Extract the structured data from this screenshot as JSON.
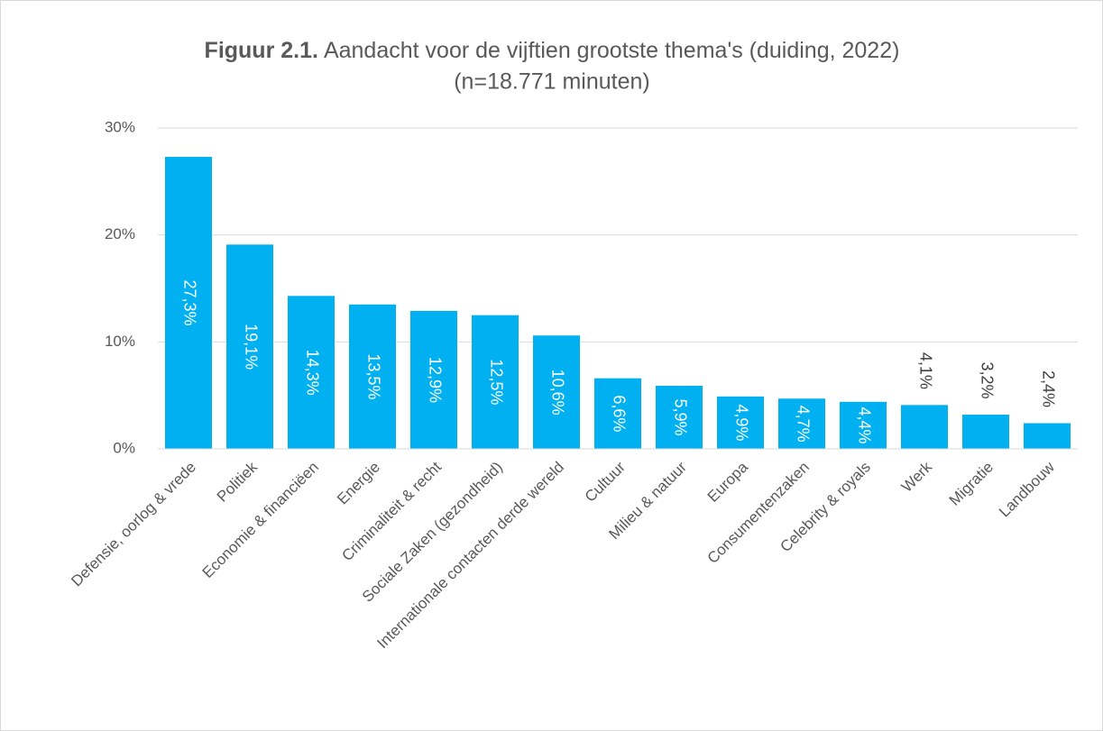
{
  "chart_data": {
    "type": "bar",
    "title_prefix": "Figuur 2.1.",
    "title": "Aandacht voor de vijftien grootste thema's (duiding, 2022)",
    "subtitle": "(n=18.771 minuten)",
    "categories": [
      "Defensie, oorlog & vrede",
      "Politiek",
      "Economie & financiëen",
      "Energie",
      "Criminaliteit & recht",
      "Sociale Zaken (gezondheid)",
      "Internationale contacten derde wereld",
      "Cultuur",
      "Milieu & natuur",
      "Europa",
      "Consumentenzaken",
      "Celebrity & royals",
      "Werk",
      "Migratie",
      "Landbouw"
    ],
    "values": [
      27.3,
      19.1,
      14.3,
      13.5,
      12.9,
      12.5,
      10.6,
      6.6,
      5.9,
      4.9,
      4.7,
      4.4,
      4.1,
      3.2,
      2.4
    ],
    "value_labels": [
      "27,3%",
      "19,1%",
      "14,3%",
      "13,5%",
      "12,9%",
      "12,5%",
      "10,6%",
      "6,6%",
      "5,9%",
      "4,9%",
      "4,7%",
      "4,4%",
      "4,1%",
      "3,2%",
      "2,4%"
    ],
    "color": "#00b0f0",
    "ylim": [
      0,
      30
    ],
    "yticks": [
      {
        "value": 0,
        "label": "0%"
      },
      {
        "value": 10,
        "label": "10%"
      },
      {
        "value": 20,
        "label": "20%"
      },
      {
        "value": 30,
        "label": "30%"
      }
    ],
    "grid": true
  }
}
